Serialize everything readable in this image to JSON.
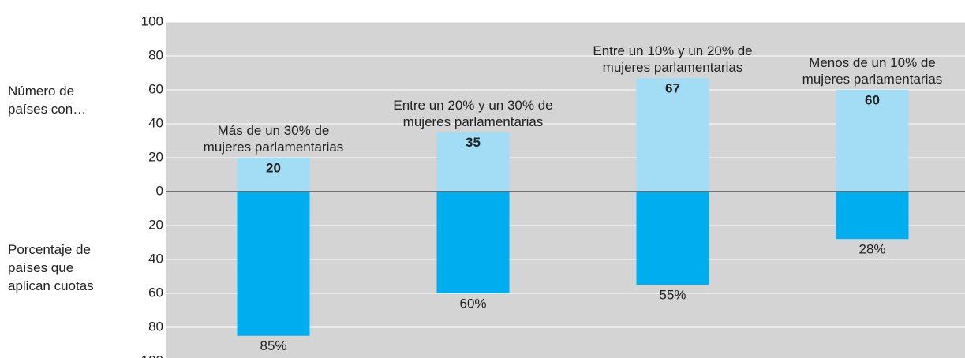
{
  "chart_data": {
    "type": "bar",
    "categories": [
      "Más de un 30% de\nmujeres parlamentarias",
      "Entre un 20% y un 30% de\nmujeres parlamentarias",
      "Entre un 10% y un 20% de\nmujeres parlamentarias",
      "Menos de un 10% de\nmujeres parlamentarias"
    ],
    "series": [
      {
        "name": "Número de\npaíses con…",
        "color": "#a3dcf5",
        "values": [
          20,
          35,
          67,
          60
        ]
      },
      {
        "name": "Porcentaje de\npaíses que\naplican cuotas",
        "color": "#00aeef",
        "values": [
          -85,
          -60,
          -55,
          -28
        ],
        "value_labels": [
          "85%",
          "60%",
          "55%",
          "28%"
        ]
      }
    ],
    "ylim": [
      -100,
      100
    ],
    "yticks": [
      {
        "value": -100,
        "label": "100"
      },
      {
        "value": -80,
        "label": "80"
      },
      {
        "value": -60,
        "label": "60"
      },
      {
        "value": -40,
        "label": "40"
      },
      {
        "value": -20,
        "label": "20"
      },
      0,
      20,
      40,
      60,
      80,
      100
    ],
    "grid": true
  }
}
